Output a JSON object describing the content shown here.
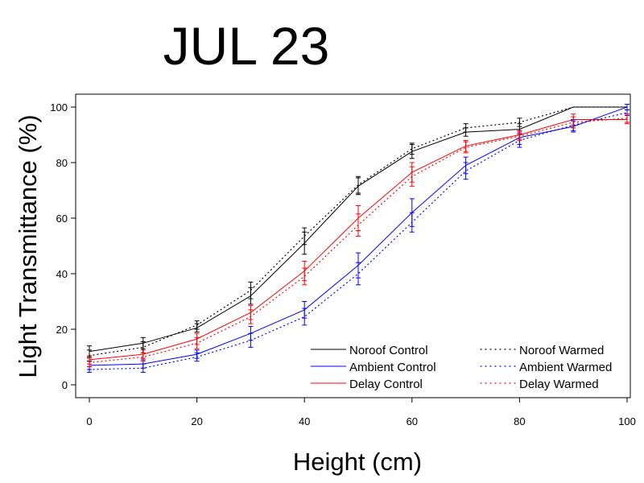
{
  "chart_data": {
    "type": "line",
    "title": "JUL 23",
    "xlabel": "Height (cm)",
    "ylabel": "Light Transmittance (%)",
    "xlim": [
      0,
      100
    ],
    "ylim": [
      -5,
      105
    ],
    "xticks": [
      0,
      20,
      40,
      60,
      80,
      100
    ],
    "yticks": [
      0,
      20,
      40,
      60,
      80,
      100
    ],
    "x": [
      0,
      10,
      20,
      30,
      40,
      50,
      60,
      70,
      80,
      90,
      100
    ],
    "legend_position": "bottom-right",
    "grid": false,
    "series": [
      {
        "name": "Noroof Control",
        "style": "solid",
        "color": "#000000",
        "values": [
          12,
          15,
          20.5,
          32,
          51,
          71.5,
          84,
          91,
          92,
          100,
          100
        ],
        "errors": [
          2,
          2,
          1.5,
          3,
          4,
          3,
          2.5,
          1.5,
          2,
          0,
          0
        ]
      },
      {
        "name": "Ambient Control",
        "style": "solid",
        "color": "#0000ff",
        "values": [
          7,
          7.5,
          11,
          18.5,
          27,
          43,
          62,
          79,
          89,
          93,
          100
        ],
        "errors": [
          1.5,
          1.5,
          1.5,
          2.5,
          3,
          4.5,
          5,
          3,
          2.5,
          2,
          1
        ]
      },
      {
        "name": "Delay Control",
        "style": "solid",
        "color": "#ff0000",
        "values": [
          9,
          11,
          16.5,
          26,
          41,
          60,
          76.5,
          86,
          90,
          95.5,
          95.5
        ],
        "errors": [
          1.5,
          1.5,
          2,
          2.5,
          3.5,
          4.5,
          3.5,
          2,
          1.5,
          2,
          1.5
        ]
      },
      {
        "name": "Noroof Warmed",
        "style": "dotted",
        "color": "#000000",
        "values": [
          10.5,
          13.5,
          21.5,
          34,
          53.5,
          72,
          85,
          92.5,
          94.5,
          100,
          100
        ],
        "errors": [
          2,
          2,
          1.5,
          3,
          3,
          3,
          2,
          1.5,
          1.5,
          0,
          0
        ]
      },
      {
        "name": "Ambient Warmed",
        "style": "dotted",
        "color": "#0000ff",
        "values": [
          5.5,
          6,
          10,
          16,
          24.5,
          40,
          58.5,
          77,
          88,
          93.5,
          98
        ],
        "errors": [
          1,
          1.5,
          1.5,
          2.5,
          3,
          4,
          3.5,
          3,
          2.5,
          2,
          1
        ]
      },
      {
        "name": "Delay Warmed",
        "style": "dotted",
        "color": "#ff0000",
        "values": [
          8,
          10,
          15,
          24.5,
          39,
          57.5,
          75,
          85.5,
          89.5,
          94.5,
          96
        ],
        "errors": [
          1.5,
          1.5,
          2,
          2.5,
          3,
          4,
          3.5,
          2,
          1.5,
          2,
          1.5
        ]
      }
    ]
  }
}
